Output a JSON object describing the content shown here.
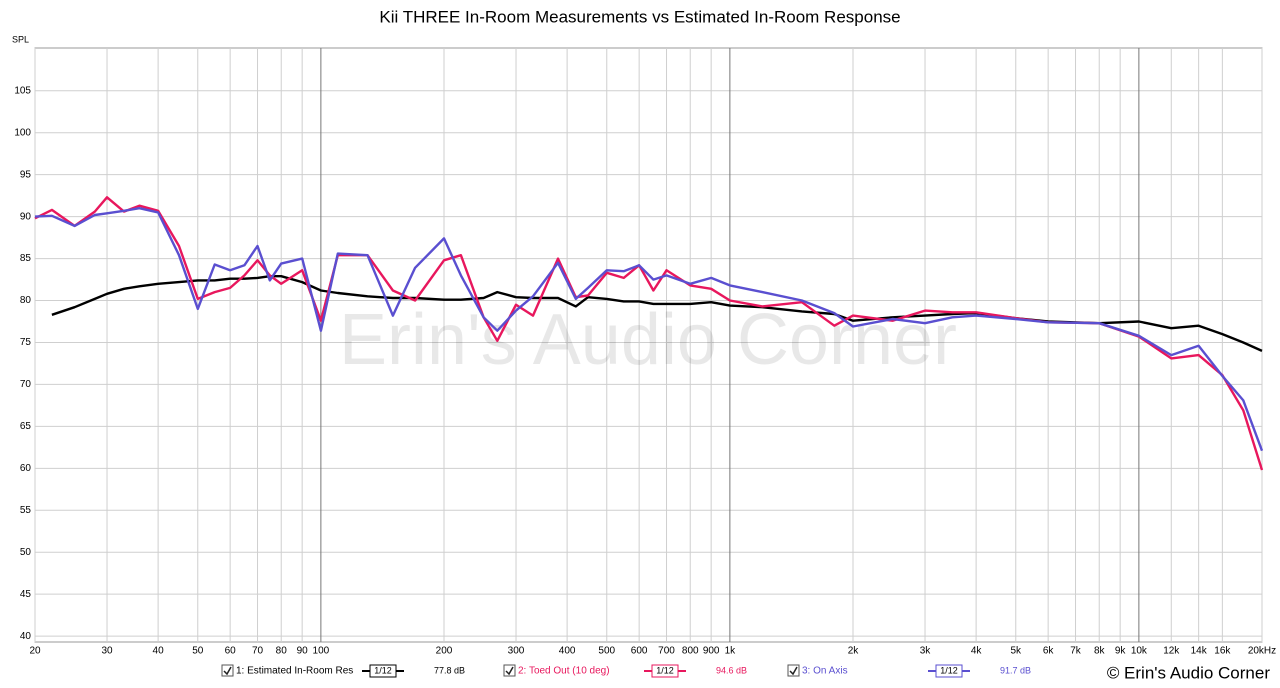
{
  "chart_data": {
    "type": "line",
    "title": "Kii THREE In-Room Measurements vs Estimated In-Room Response",
    "y_label": "SPL",
    "watermark": "Erin's Audio Corner",
    "copyright": "© Erin's Audio Corner",
    "log_x": true,
    "grid": true,
    "xlim": [
      20,
      20000
    ],
    "ylim": [
      39.3,
      110.1
    ],
    "xticks": [
      20,
      30,
      40,
      50,
      60,
      70,
      80,
      90,
      100,
      200,
      300,
      400,
      500,
      600,
      700,
      800,
      900,
      {
        "value": 1000,
        "label": "1k"
      },
      {
        "value": 2000,
        "label": "2k"
      },
      {
        "value": 3000,
        "label": "3k"
      },
      {
        "value": 4000,
        "label": "4k"
      },
      {
        "value": 5000,
        "label": "5k"
      },
      {
        "value": 6000,
        "label": "6k"
      },
      {
        "value": 7000,
        "label": "7k"
      },
      {
        "value": 8000,
        "label": "8k"
      },
      {
        "value": 9000,
        "label": "9k"
      },
      {
        "value": 10000,
        "label": "10k"
      },
      {
        "value": 12000,
        "label": "12k"
      },
      {
        "value": 14000,
        "label": "14k"
      },
      {
        "value": 16000,
        "label": "16k"
      },
      {
        "value": 20000,
        "label": "20kHz"
      }
    ],
    "yticks": [
      40,
      45,
      50,
      55,
      60,
      65,
      70,
      75,
      80,
      85,
      90,
      95,
      100,
      105
    ],
    "x": [
      20,
      22,
      25,
      28,
      30,
      33,
      36,
      40,
      45,
      50,
      55,
      60,
      65,
      70,
      75,
      80,
      90,
      100,
      110,
      130,
      150,
      170,
      200,
      220,
      250,
      270,
      300,
      330,
      380,
      420,
      450,
      500,
      550,
      600,
      650,
      700,
      800,
      900,
      1000,
      1200,
      1500,
      1800,
      2000,
      2500,
      3000,
      3500,
      4000,
      5000,
      6000,
      8000,
      10000,
      12000,
      14000,
      16000,
      18000,
      20000
    ],
    "series": [
      {
        "name": "1: Estimated In-Room Res",
        "color": "#000000",
        "smoothing": "1/12",
        "level": "77.8 dB",
        "values": [
          null,
          78.3,
          79.2,
          80.2,
          80.8,
          81.4,
          81.7,
          82,
          82.2,
          82.4,
          82.4,
          82.6,
          82.6,
          82.7,
          82.9,
          82.9,
          82.2,
          81.2,
          80.9,
          80.5,
          80.3,
          80.3,
          80.1,
          80.1,
          80.3,
          81,
          80.4,
          80.3,
          80.3,
          79.3,
          80.4,
          80.2,
          79.9,
          79.9,
          79.6,
          79.6,
          79.6,
          79.8,
          79.4,
          79.2,
          78.7,
          78.4,
          77.6,
          78,
          78.2,
          78.4,
          78.5,
          77.9,
          77.5,
          77.3,
          77.5,
          76.7,
          77,
          76,
          75,
          74
        ]
      },
      {
        "name": "2: Toed Out (10 deg)",
        "color": "#e8175d",
        "smoothing": "1/12",
        "level": "94.6 dB",
        "values": [
          89.8,
          90.8,
          88.9,
          90.6,
          92.3,
          90.6,
          91.3,
          90.7,
          86.5,
          80.2,
          81,
          81.5,
          83,
          84.8,
          83,
          82,
          83.6,
          77.6,
          85.4,
          85.4,
          81.2,
          80,
          84.8,
          85.4,
          78,
          75.2,
          79.5,
          78.2,
          85,
          80.4,
          80.6,
          83.3,
          82.7,
          84.2,
          81.2,
          83.6,
          81.8,
          81.4,
          80,
          79.3,
          79.8,
          77,
          78.2,
          77.6,
          78.8,
          78.6,
          78.6,
          77.9,
          77.4,
          77.3,
          75.7,
          73.1,
          73.5,
          71.1,
          66.9,
          59.8
        ]
      },
      {
        "name": "3: On Axis",
        "color": "#5a4fd0",
        "smoothing": "1/12",
        "level": "91.7 dB",
        "values": [
          90,
          90.1,
          88.9,
          90.2,
          90.4,
          90.7,
          91,
          90.5,
          85.4,
          79,
          84.3,
          83.6,
          84.2,
          86.5,
          82.4,
          84.4,
          85,
          76.4,
          85.6,
          85.4,
          78.2,
          83.9,
          87.4,
          83,
          78,
          76.4,
          78.8,
          80.5,
          84.5,
          80.2,
          81.5,
          83.6,
          83.5,
          84.2,
          82.5,
          83,
          82,
          82.7,
          81.8,
          81,
          80,
          78.5,
          76.9,
          77.8,
          77.3,
          78,
          78.2,
          77.8,
          77.4,
          77.3,
          75.8,
          73.5,
          74.6,
          71,
          68.1,
          62.1
        ]
      }
    ]
  }
}
